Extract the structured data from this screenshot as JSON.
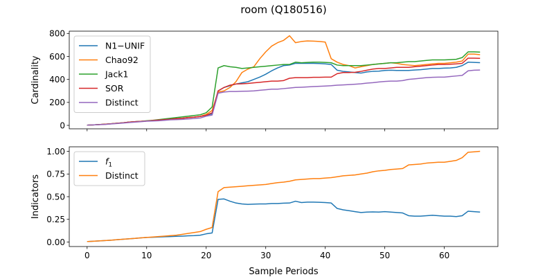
{
  "figure": {
    "title": "room (Q180516)",
    "xlabel": "Sample Periods"
  },
  "chart_data": [
    {
      "type": "line",
      "ylabel": "Cardinality",
      "xlim": [
        -3,
        69
      ],
      "ylim": [
        -30,
        820
      ],
      "xticks": [
        0,
        10,
        20,
        30,
        40,
        50,
        60
      ],
      "yticks": [
        0,
        200,
        400,
        600,
        800
      ],
      "ytick_labels": [
        "0",
        "200",
        "400",
        "600",
        "800"
      ],
      "show_xtick_labels": false,
      "grid": false,
      "legend_position": "top-left",
      "series": [
        {
          "name": "N1−UNIF",
          "color": "#1f77b4",
          "values": [
            2,
            4,
            7,
            10,
            14,
            18,
            22,
            28,
            32,
            35,
            38,
            42,
            46,
            50,
            54,
            58,
            62,
            68,
            72,
            78,
            88,
            100,
            300,
            330,
            345,
            360,
            370,
            380,
            400,
            420,
            445,
            475,
            500,
            520,
            525,
            540,
            540,
            540,
            540,
            538,
            535,
            530,
            480,
            470,
            465,
            460,
            455,
            465,
            470,
            472,
            478,
            480,
            478,
            478,
            478,
            482,
            485,
            490,
            495,
            495,
            498,
            500,
            505,
            520,
            550,
            548,
            546
          ]
        },
        {
          "name": "Chao92",
          "color": "#ff7f0e",
          "values": [
            2,
            4,
            7,
            10,
            14,
            18,
            22,
            28,
            32,
            35,
            38,
            42,
            46,
            50,
            54,
            58,
            62,
            68,
            72,
            78,
            95,
            130,
            290,
            300,
            330,
            380,
            460,
            490,
            510,
            580,
            640,
            690,
            720,
            740,
            780,
            720,
            730,
            735,
            733,
            730,
            725,
            580,
            550,
            530,
            520,
            500,
            510,
            520,
            530,
            535,
            540,
            545,
            540,
            530,
            525,
            520,
            525,
            530,
            535,
            540,
            540,
            545,
            550,
            560,
            620,
            620,
            615
          ]
        },
        {
          "name": "Jack1",
          "color": "#2ca02c",
          "values": [
            2,
            4,
            7,
            10,
            14,
            18,
            22,
            28,
            32,
            35,
            40,
            44,
            50,
            56,
            62,
            68,
            74,
            80,
            86,
            92,
            110,
            160,
            500,
            520,
            510,
            505,
            495,
            500,
            505,
            510,
            515,
            520,
            525,
            530,
            530,
            550,
            545,
            548,
            550,
            550,
            548,
            545,
            525,
            520,
            520,
            520,
            520,
            525,
            530,
            535,
            540,
            545,
            545,
            550,
            555,
            555,
            560,
            565,
            570,
            570,
            570,
            572,
            575,
            590,
            640,
            640,
            638
          ]
        },
        {
          "name": "SOR",
          "color": "#d62728",
          "values": [
            2,
            4,
            7,
            10,
            14,
            18,
            22,
            28,
            32,
            35,
            38,
            42,
            46,
            50,
            54,
            58,
            62,
            68,
            72,
            78,
            88,
            110,
            300,
            330,
            350,
            360,
            362,
            365,
            370,
            375,
            380,
            385,
            385,
            390,
            410,
            415,
            415,
            415,
            418,
            418,
            420,
            420,
            450,
            460,
            460,
            462,
            470,
            480,
            490,
            495,
            495,
            500,
            505,
            505,
            505,
            510,
            515,
            520,
            525,
            530,
            530,
            532,
            535,
            540,
            585,
            585,
            583
          ]
        },
        {
          "name": "Distinct",
          "color": "#9467bd",
          "values": [
            2,
            4,
            6,
            8,
            12,
            16,
            20,
            24,
            28,
            32,
            36,
            38,
            40,
            44,
            48,
            50,
            52,
            56,
            60,
            64,
            80,
            90,
            280,
            290,
            295,
            295,
            297,
            298,
            300,
            305,
            310,
            315,
            315,
            320,
            325,
            330,
            332,
            335,
            338,
            340,
            342,
            345,
            350,
            352,
            355,
            358,
            362,
            368,
            372,
            378,
            382,
            385,
            385,
            390,
            400,
            405,
            410,
            415,
            418,
            420,
            420,
            425,
            430,
            435,
            475,
            480,
            482
          ]
        }
      ]
    },
    {
      "type": "line",
      "ylabel": "Indicators",
      "xlim": [
        -3,
        69
      ],
      "ylim": [
        -0.05,
        1.05
      ],
      "xticks": [
        0,
        10,
        20,
        30,
        40,
        50,
        60
      ],
      "xtick_labels": [
        "0",
        "10",
        "20",
        "30",
        "40",
        "50",
        "60"
      ],
      "yticks": [
        0,
        0.25,
        0.5,
        0.75,
        1.0
      ],
      "ytick_labels": [
        "0.00",
        "0.25",
        "0.50",
        "0.75",
        "1.00"
      ],
      "show_xtick_labels": true,
      "grid": false,
      "legend_position": "top-left",
      "series": [
        {
          "name": "f",
          "subscript": "1",
          "color": "#1f77b4",
          "values": [
            0.005,
            0.008,
            0.012,
            0.016,
            0.02,
            0.025,
            0.03,
            0.035,
            0.04,
            0.045,
            0.05,
            0.052,
            0.055,
            0.058,
            0.06,
            0.063,
            0.065,
            0.068,
            0.07,
            0.075,
            0.09,
            0.1,
            0.47,
            0.475,
            0.45,
            0.43,
            0.42,
            0.415,
            0.418,
            0.42,
            0.42,
            0.425,
            0.425,
            0.428,
            0.43,
            0.45,
            0.435,
            0.44,
            0.44,
            0.438,
            0.435,
            0.43,
            0.37,
            0.355,
            0.345,
            0.335,
            0.325,
            0.33,
            0.332,
            0.33,
            0.335,
            0.33,
            0.325,
            0.32,
            0.29,
            0.285,
            0.285,
            0.29,
            0.295,
            0.29,
            0.285,
            0.285,
            0.28,
            0.29,
            0.34,
            0.335,
            0.33
          ]
        },
        {
          "name": "Distinct",
          "color": "#ff7f0e",
          "values": [
            0.005,
            0.008,
            0.012,
            0.016,
            0.02,
            0.025,
            0.03,
            0.035,
            0.04,
            0.045,
            0.05,
            0.055,
            0.06,
            0.065,
            0.07,
            0.075,
            0.085,
            0.095,
            0.105,
            0.115,
            0.14,
            0.16,
            0.555,
            0.6,
            0.605,
            0.61,
            0.615,
            0.62,
            0.625,
            0.63,
            0.635,
            0.645,
            0.655,
            0.66,
            0.67,
            0.685,
            0.69,
            0.695,
            0.7,
            0.7,
            0.705,
            0.71,
            0.72,
            0.73,
            0.735,
            0.74,
            0.75,
            0.76,
            0.775,
            0.785,
            0.79,
            0.8,
            0.805,
            0.81,
            0.85,
            0.855,
            0.86,
            0.87,
            0.875,
            0.88,
            0.88,
            0.89,
            0.9,
            0.93,
            0.99,
            0.995,
            1.0
          ]
        }
      ]
    }
  ]
}
